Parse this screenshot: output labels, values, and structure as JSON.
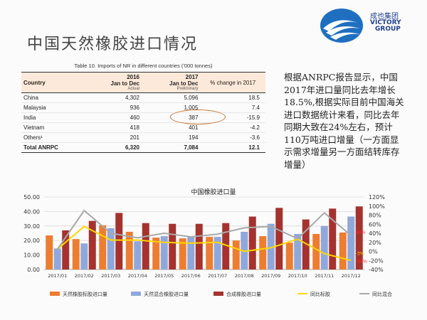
{
  "slide_title": "中国天然橡胶进口情况",
  "logo": {
    "cn": "成也集团",
    "en_line1": "VICTORY",
    "en_line2": "GROUP"
  },
  "table": {
    "caption": "Table 10. Imports of NR in different countries ('000 tonnes)",
    "col_country": "Country",
    "col_2016_year": "2016",
    "col_2016_range": "Jan to Dec",
    "col_2016_note": "Actual",
    "col_2017_year": "2017",
    "col_2017_range": "Jan to Dec",
    "col_2017_note": "Preliminary",
    "col_change": "% change in 2017",
    "rows": [
      {
        "country": "China",
        "v2016": "4,302",
        "v2017": "5,096",
        "change": "18.5"
      },
      {
        "country": "Malaysia",
        "v2016": "936",
        "v2017": "1,005",
        "change": "7.4"
      },
      {
        "country": "India",
        "v2016": "460",
        "v2017": "387",
        "change": "-15.9"
      },
      {
        "country": "Vietnam",
        "v2016": "418",
        "v2017": "401",
        "change": "-4.2"
      },
      {
        "country": "Others¹",
        "v2016": "201",
        "v2017": "194",
        "change": "-3.6"
      }
    ],
    "total": {
      "country": "Total ANRPC",
      "v2016": "6,320",
      "v2017": "7,084",
      "change": "12.1"
    }
  },
  "commentary": "根据ANRPC报告显示，中国2017年进口量同比去年增长18.5%,根据实际目前中国海关进口数据统计来看，同比去年同期大致在24%左右，预计110万吨进口增量（一方面显示需求增量另一方面结转库存增量）",
  "chart_data": {
    "type": "bar",
    "title": "中国橡胶进口量",
    "categories": [
      "2017/01",
      "2017/02",
      "2017/03",
      "2017/04",
      "2017/05",
      "2017/06",
      "2017/07",
      "2017/08",
      "2017/09",
      "2017/10",
      "2017/11",
      "2017/12"
    ],
    "ylim": [
      0,
      50
    ],
    "y_ticks": [
      "0.00",
      "10.00",
      "20.00",
      "30.00",
      "40.00",
      "50.00"
    ],
    "y2lim": [
      -40,
      120
    ],
    "y2_ticks": [
      "-40%",
      "-20%",
      "0%",
      "20%",
      "40%",
      "60%",
      "80%",
      "100%",
      "120%"
    ],
    "grid": true,
    "legend_position": "bottom",
    "series": [
      {
        "name": "天然橡胶标胶进口量",
        "type": "bar",
        "axis": "left",
        "color": "#ed7d31",
        "values": [
          23.5,
          21.0,
          30.5,
          26.0,
          22.0,
          21.5,
          22.5,
          20.0,
          23.0,
          18.5,
          24.5,
          25.5
        ]
      },
      {
        "name": "天然混合橡胶进口量",
        "type": "bar",
        "axis": "left",
        "color": "#8fa8dc",
        "values": [
          14.5,
          18.0,
          28.5,
          19.5,
          23.0,
          23.0,
          22.5,
          26.0,
          31.5,
          24.5,
          30.0,
          36.5
        ]
      },
      {
        "name": "合成橡胶进口量",
        "type": "bar",
        "axis": "left",
        "color": "#a5322e",
        "values": [
          27.0,
          33.5,
          39.0,
          32.0,
          31.5,
          31.5,
          32.0,
          36.5,
          42.5,
          34.5,
          42.0,
          43.5
        ]
      },
      {
        "name": "同比标胶",
        "type": "line",
        "axis": "right",
        "color": "#ffd700",
        "values": [
          5,
          55,
          25,
          25,
          20,
          18,
          20,
          0,
          8,
          27,
          -5,
          -20
        ]
      },
      {
        "name": "同比混合",
        "type": "line",
        "axis": "right",
        "color": "#a9a9a9",
        "values": [
          5,
          90,
          40,
          30,
          40,
          32,
          38,
          52,
          55,
          28,
          85,
          35
        ]
      }
    ],
    "annotations": [
      "-20%",
      "-3%",
      "44%"
    ]
  }
}
